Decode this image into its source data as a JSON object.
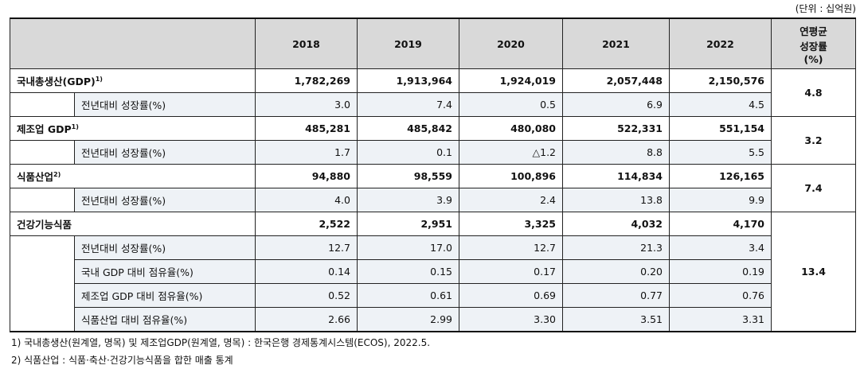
{
  "unit": "(단위 : 십억원)",
  "header": {
    "years": [
      "2018",
      "2019",
      "2020",
      "2021",
      "2022"
    ],
    "avg_label": [
      "연평균",
      "성장률",
      "(%)"
    ]
  },
  "groups": [
    {
      "label": "국내총생산(GDP)",
      "note": "1)",
      "values": [
        "1,782,269",
        "1,913,964",
        "1,924,019",
        "2,057,448",
        "2,150,576"
      ],
      "avg": "4.8",
      "subs": [
        {
          "label": "전년대비 성장률(%)",
          "values": [
            "3.0",
            "7.4",
            "0.5",
            "6.9",
            "4.5"
          ]
        }
      ]
    },
    {
      "label": "제조업 GDP",
      "note": "1)",
      "values": [
        "485,281",
        "485,842",
        "480,080",
        "522,331",
        "551,154"
      ],
      "avg": "3.2",
      "subs": [
        {
          "label": "전년대비 성장률(%)",
          "values": [
            "1.7",
            "0.1",
            "△1.2",
            "8.8",
            "5.5"
          ]
        }
      ]
    },
    {
      "label": "식품산업",
      "note": "2)",
      "values": [
        "94,880",
        "98,559",
        "100,896",
        "114,834",
        "126,165"
      ],
      "avg": "7.4",
      "subs": [
        {
          "label": "전년대비 성장률(%)",
          "values": [
            "4.0",
            "3.9",
            "2.4",
            "13.8",
            "9.9"
          ]
        }
      ]
    },
    {
      "label": "건강기능식품",
      "note": "",
      "values": [
        "2,522",
        "2,951",
        "3,325",
        "4,032",
        "4,170"
      ],
      "avg": "13.4",
      "subs": [
        {
          "label": "전년대비 성장률(%)",
          "values": [
            "12.7",
            "17.0",
            "12.7",
            "21.3",
            "3.4"
          ]
        },
        {
          "label": "국내 GDP 대비 점유율(%)",
          "values": [
            "0.14",
            "0.15",
            "0.17",
            "0.20",
            "0.19"
          ]
        },
        {
          "label": "제조업 GDP 대비 점유율(%)",
          "values": [
            "0.52",
            "0.61",
            "0.69",
            "0.77",
            "0.76"
          ]
        },
        {
          "label": "식품산업 대비 점유율(%)",
          "values": [
            "2.66",
            "2.99",
            "3.30",
            "3.51",
            "3.31"
          ]
        }
      ]
    }
  ],
  "footnotes": [
    "1) 국내총생산(원계열, 명목) 및 제조업GDP(원계열, 명목) : 한국은행 경제통계시스템(ECOS), 2022.5.",
    "2) 식품산업 : 식품·축산·건강기능식품을 합한 매출 통계"
  ]
}
